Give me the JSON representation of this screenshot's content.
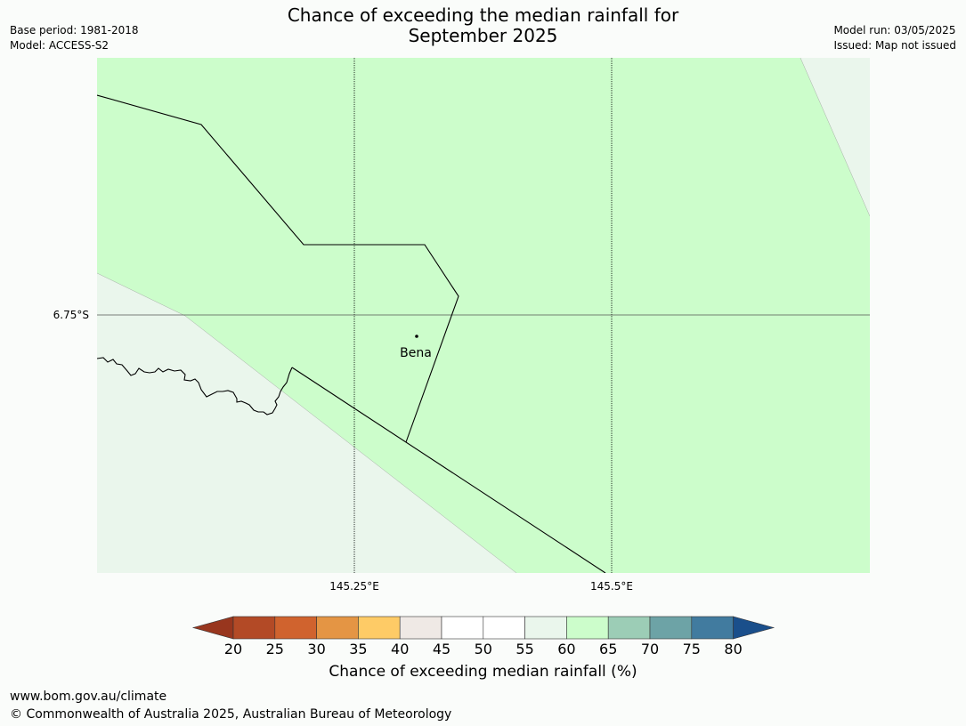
{
  "header": {
    "title_line1": "Chance of exceeding the median rainfall for",
    "title_line2": "September 2025",
    "base_period": "Base period: 1981-2018",
    "model": "Model: ACCESS-S2",
    "model_run": "Model run: 03/05/2025",
    "issued": "Issued: Map not issued"
  },
  "map": {
    "latitude_label": "6.75°S",
    "longitude_labels": [
      "145.25°E",
      "145.5°E"
    ],
    "place": "Bena",
    "colors": {
      "band_60_65": "#ccfdcb",
      "band_55_60": "#eaf6ec",
      "outline": "#000000"
    }
  },
  "colorbar": {
    "ticks": [
      "20",
      "25",
      "30",
      "35",
      "40",
      "45",
      "50",
      "55",
      "60",
      "65",
      "70",
      "75",
      "80"
    ],
    "colors": [
      "#b34a26",
      "#d0632e",
      "#e49544",
      "#fecb66",
      "#efe9e5",
      "#ffffff",
      "#ffffff",
      "#eaf6ec",
      "#ccfdcb",
      "#9ccdb6",
      "#6da3a6",
      "#417b9f"
    ],
    "under_color": "#98361e",
    "over_color": "#1a4f8b",
    "label": "Chance of exceeding median rainfall (%)"
  },
  "footer": {
    "url": "www.bom.gov.au/climate",
    "copyright": "© Commonwealth of Australia 2025, Australian Bureau of Meteorology"
  }
}
